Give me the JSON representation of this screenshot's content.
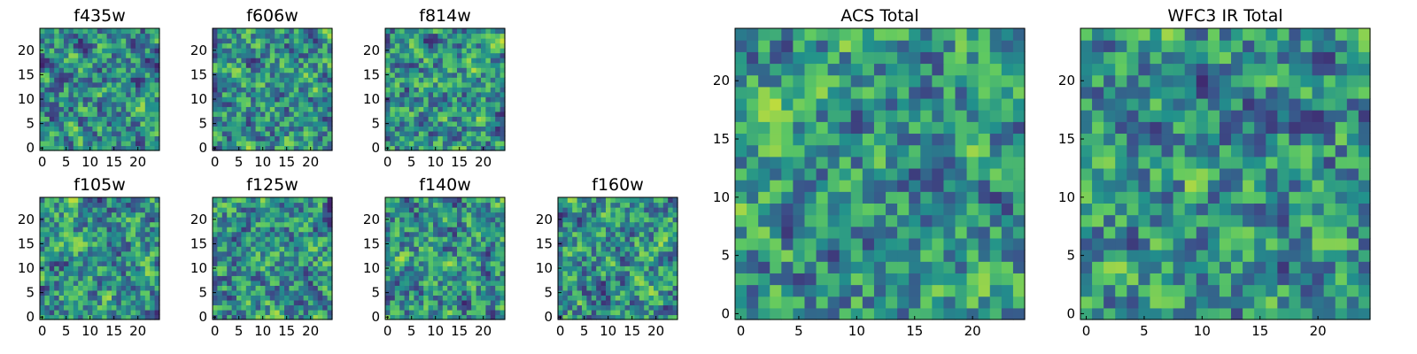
{
  "figure": {
    "colormap": [
      "#440154",
      "#3b528b",
      "#21918c",
      "#5ec962",
      "#fde725"
    ],
    "frame_color": "#000000",
    "background": "#ffffff"
  },
  "chart_data": [
    {
      "type": "heatmap",
      "title": "f435w",
      "grid": false,
      "x_range": [
        0,
        25
      ],
      "y_range": [
        0,
        25
      ],
      "pixels": [
        25,
        25
      ],
      "xticks": [
        "0",
        "5",
        "10",
        "15",
        "20"
      ],
      "yticks": [
        "0",
        "5",
        "10",
        "15",
        "20"
      ],
      "pattern": "noise",
      "seed": 11
    },
    {
      "type": "heatmap",
      "title": "f606w",
      "grid": false,
      "x_range": [
        0,
        25
      ],
      "y_range": [
        0,
        25
      ],
      "pixels": [
        25,
        25
      ],
      "xticks": [
        "0",
        "5",
        "10",
        "15",
        "20"
      ],
      "yticks": [
        "0",
        "5",
        "10",
        "15",
        "20"
      ],
      "pattern": "noise",
      "seed": 23
    },
    {
      "type": "heatmap",
      "title": "f814w",
      "grid": false,
      "x_range": [
        0,
        25
      ],
      "y_range": [
        0,
        25
      ],
      "pixels": [
        25,
        25
      ],
      "xticks": [
        "0",
        "5",
        "10",
        "15",
        "20"
      ],
      "yticks": [
        "0",
        "5",
        "10",
        "15",
        "20"
      ],
      "pattern": "noise",
      "seed": 37
    },
    {
      "type": "heatmap",
      "title": "f105w",
      "grid": false,
      "x_range": [
        0,
        25
      ],
      "y_range": [
        0,
        25
      ],
      "pixels": [
        25,
        25
      ],
      "xticks": [
        "0",
        "5",
        "10",
        "15",
        "20"
      ],
      "yticks": [
        "0",
        "5",
        "10",
        "15",
        "20"
      ],
      "pattern": "noise",
      "seed": 41
    },
    {
      "type": "heatmap",
      "title": "f125w",
      "grid": false,
      "x_range": [
        0,
        25
      ],
      "y_range": [
        0,
        25
      ],
      "pixels": [
        25,
        25
      ],
      "xticks": [
        "0",
        "5",
        "10",
        "15",
        "20"
      ],
      "yticks": [
        "0",
        "5",
        "10",
        "15",
        "20"
      ],
      "pattern": "noise",
      "seed": 53
    },
    {
      "type": "heatmap",
      "title": "f140w",
      "grid": false,
      "x_range": [
        0,
        25
      ],
      "y_range": [
        0,
        25
      ],
      "pixels": [
        25,
        25
      ],
      "xticks": [
        "0",
        "5",
        "10",
        "15",
        "20"
      ],
      "yticks": [
        "0",
        "5",
        "10",
        "15",
        "20"
      ],
      "pattern": "noise",
      "seed": 67
    },
    {
      "type": "heatmap",
      "title": "f160w",
      "grid": false,
      "x_range": [
        0,
        25
      ],
      "y_range": [
        0,
        25
      ],
      "pixels": [
        25,
        25
      ],
      "xticks": [
        "0",
        "5",
        "10",
        "15",
        "20"
      ],
      "yticks": [
        "0",
        "5",
        "10",
        "15",
        "20"
      ],
      "pattern": "noise",
      "seed": 79
    },
    {
      "type": "heatmap",
      "title": "ACS Total",
      "grid": false,
      "x_range": [
        0,
        25
      ],
      "y_range": [
        0,
        25
      ],
      "pixels": [
        25,
        25
      ],
      "xticks": [
        "0",
        "5",
        "10",
        "15",
        "20"
      ],
      "yticks": [
        "0",
        "5",
        "10",
        "15",
        "20"
      ],
      "pattern": "noise",
      "seed": 83
    },
    {
      "type": "heatmap",
      "title": "WFC3 IR Total",
      "grid": false,
      "x_range": [
        0,
        25
      ],
      "y_range": [
        0,
        25
      ],
      "pixels": [
        25,
        25
      ],
      "xticks": [
        "0",
        "5",
        "10",
        "15",
        "20"
      ],
      "yticks": [
        "0",
        "5",
        "10",
        "15",
        "20"
      ],
      "pattern": "noise",
      "seed": 97
    }
  ]
}
